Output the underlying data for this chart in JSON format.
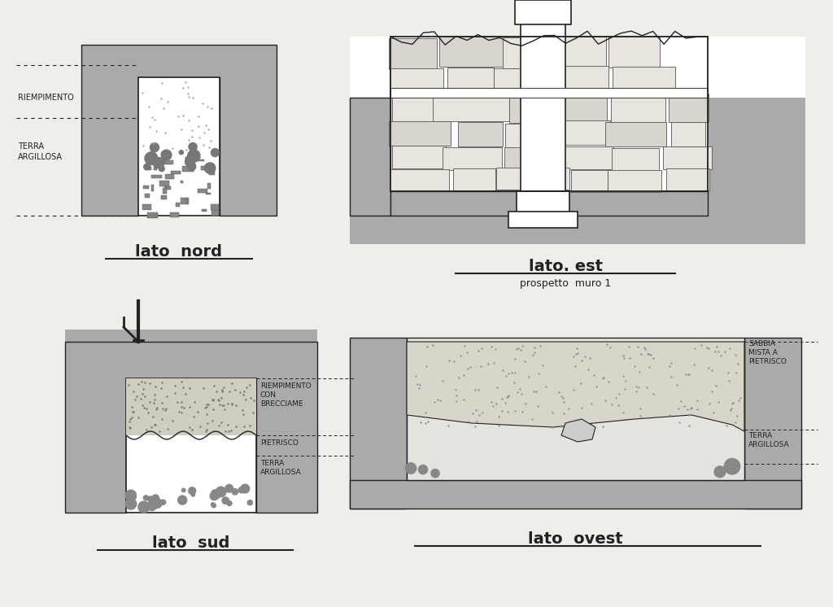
{
  "bg_color": "#f0eeea",
  "gray": "#aaaaaa",
  "gray_dark": "#999999",
  "gray_light": "#c8c8c8",
  "white": "#ffffff",
  "off_white": "#f0eeea",
  "text_color": "#111111",
  "labels": {
    "nord": "lato  nord",
    "est": "lato. est",
    "est_sub": "prospetto  muro 1",
    "sud": "lato  sud",
    "ovest": "lato  ovest"
  },
  "ann_nord": [
    "RIEMPIMENTO",
    "TERRA\nARGILLOSA"
  ],
  "ann_sud": [
    "RIEMPIMENTO\nCON\nBRECCIAME",
    "PIETRISCO",
    "TERRA\nARGILLOSA"
  ],
  "ann_ovest": [
    "SABBIA\nMISTA A\nPIETRISCO",
    "TERRA\nARGILLOSA"
  ]
}
